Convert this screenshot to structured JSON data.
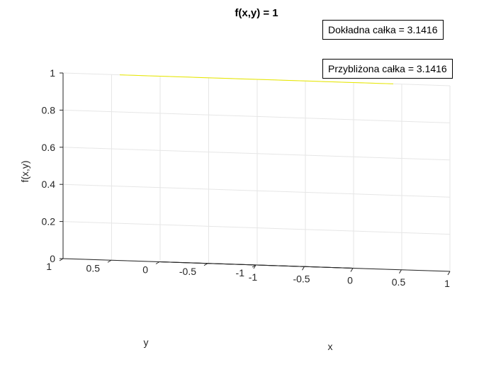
{
  "chart_data": {
    "type": "surface",
    "title": "f(x,y) = 1",
    "xlabel": "x",
    "ylabel": "y",
    "zlabel": "f(x,y)",
    "xlim": [
      -1,
      1
    ],
    "ylim": [
      -1,
      1
    ],
    "zlim": [
      0,
      1
    ],
    "x_ticks": [
      "-1",
      "-0.5",
      "0",
      "0.5",
      "1"
    ],
    "y_ticks": [
      "-1",
      "-0.5",
      "0",
      "0.5",
      "1"
    ],
    "z_ticks": [
      "0",
      "0.2",
      "0.4",
      "0.6",
      "0.8",
      "1"
    ],
    "surface": {
      "shape": "unit disk",
      "radius": 1,
      "z": 1
    },
    "grid": true,
    "colors": {
      "surface": "#ffff00",
      "grid": "#e6e6e6",
      "axis": "#262626"
    },
    "annotations": [
      "Dokładna całka =  3.1416",
      "Przybliżona całka = 3.1416"
    ]
  }
}
